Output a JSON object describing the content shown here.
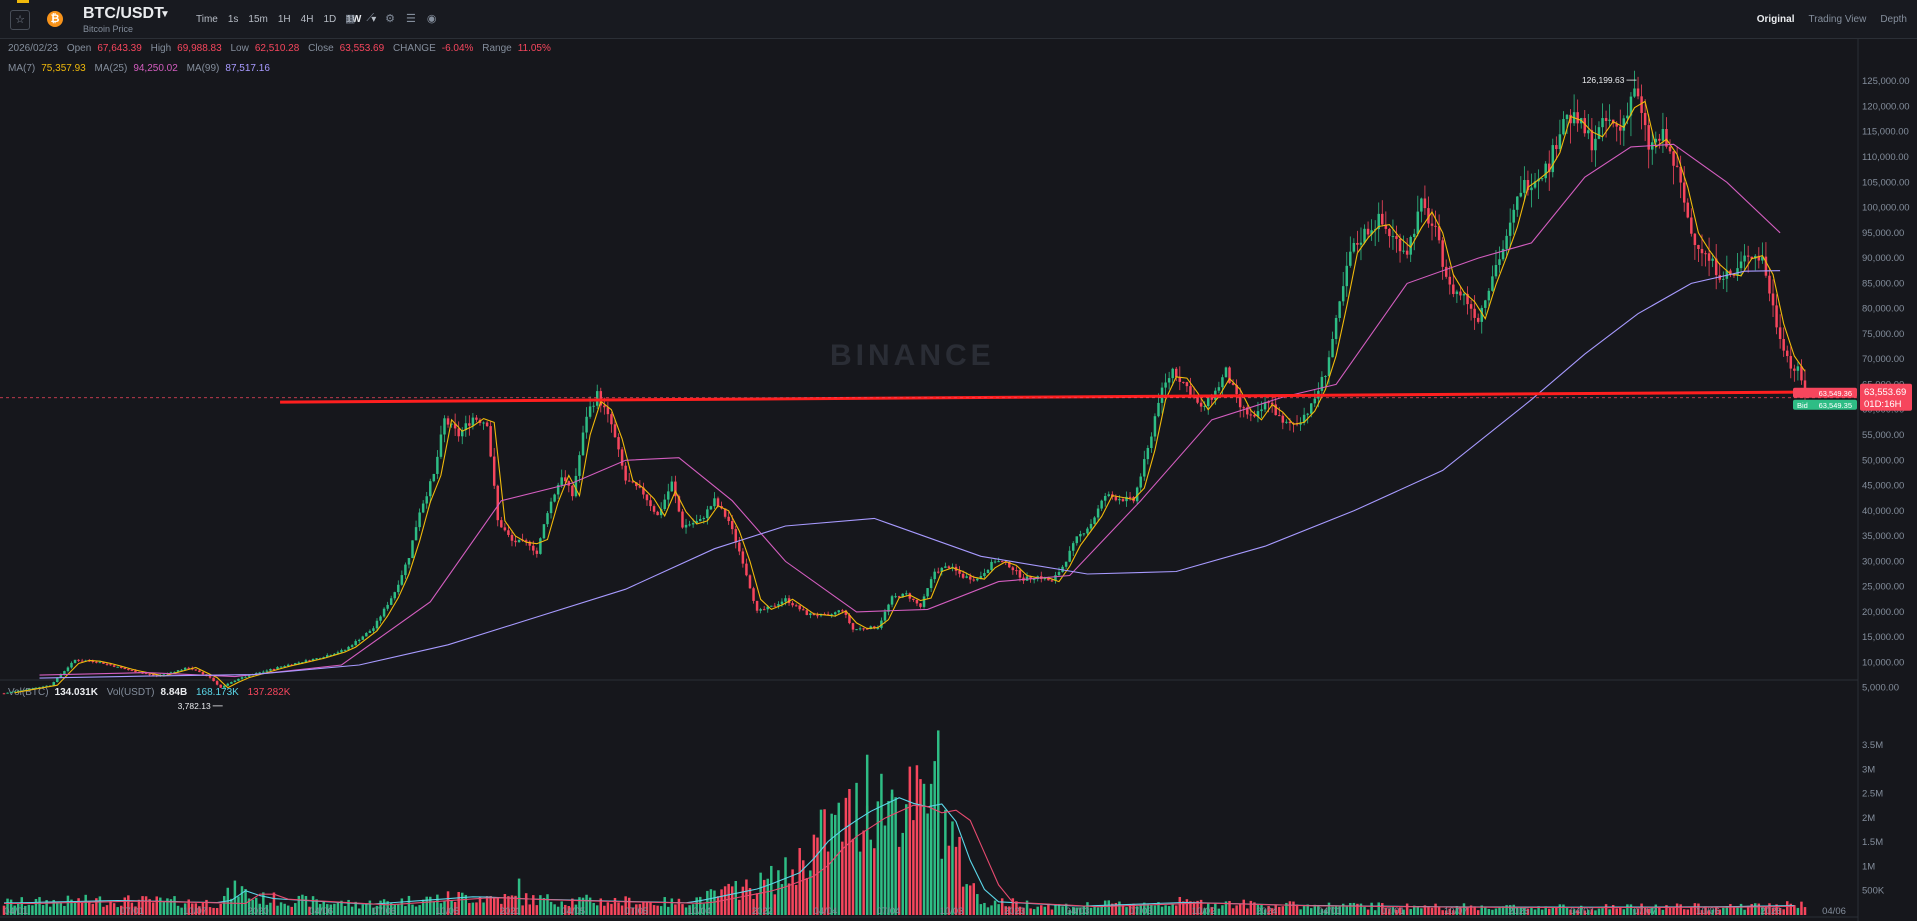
{
  "header": {
    "pair": "BTC/USDT",
    "subtitle": "Bitcoin Price",
    "intervals": [
      "Time",
      "1s",
      "15m",
      "1H",
      "4H",
      "1D",
      "1W"
    ],
    "active_interval": "1W",
    "views": [
      "Original",
      "Trading View",
      "Depth"
    ],
    "active_view": "Original"
  },
  "ohlc": {
    "date": "2026/02/23",
    "open_label": "Open",
    "open": "67,643.39",
    "high_label": "High",
    "high": "69,988.83",
    "low_label": "Low",
    "low": "62,510.28",
    "close_label": "Close",
    "close": "63,553.69",
    "change_label": "CHANGE",
    "change": "-6.04%",
    "range_label": "Range",
    "range": "11.05%"
  },
  "ma": {
    "ma7_label": "MA(7)",
    "ma7": "75,357.93",
    "ma25_label": "MA(25)",
    "ma25": "94,250.02",
    "ma99_label": "MA(99)",
    "ma99": "87,517.16"
  },
  "volume_info": {
    "btc_label": "Vol(BTC)",
    "btc": "134.031K",
    "usdt_label": "Vol(USDT)",
    "usdt": "8.84B",
    "ma1": "168.173K",
    "ma2": "137.282K"
  },
  "price_tags": {
    "last_price": "63,553.69",
    "countdown": "01D:16H",
    "ask": "63,549.36",
    "bid_label": "Bid",
    "bid": "63,549.35"
  },
  "annotations": {
    "high": "126,199.63",
    "low": "3,782.13"
  },
  "watermark": "BINANCE",
  "colors": {
    "up": "#2ebd85",
    "down": "#f6465d",
    "ma7": "#f0b90b",
    "ma25": "#d35dbf",
    "ma99": "#a79aff",
    "trendline": "#ff1f1f"
  },
  "chart_data": {
    "type": "candlestick",
    "timeframe": "1W",
    "price_axis": {
      "ticks": [
        5000,
        10000,
        15000,
        20000,
        25000,
        30000,
        35000,
        40000,
        45000,
        50000,
        55000,
        60000,
        65000,
        70000,
        75000,
        80000,
        85000,
        90000,
        95000,
        100000,
        105000,
        110000,
        115000,
        120000,
        125000
      ],
      "tick_labels": [
        "5,000.00",
        "10,000.00",
        "15,000.00",
        "20,000.00",
        "25,000.00",
        "30,000.00",
        "35,000.00",
        "40,000.00",
        "45,000.00",
        "50,000.00",
        "55,000.00",
        "60,000.00",
        "65,000.00",
        "70,000.00",
        "75,000.00",
        "80,000.00",
        "85,000.00",
        "90,000.00",
        "95,000.00",
        "100,000.00",
        "105,000.00",
        "110,000.00",
        "115,000.00",
        "120,000.00",
        "125,000.00"
      ],
      "range": [
        0,
        128000
      ]
    },
    "volume_axis": {
      "ticks": [
        500000,
        1000000,
        1500000,
        2000000,
        2500000,
        3000000,
        3500000
      ],
      "tick_labels": [
        "500K",
        "1M",
        "1.5M",
        "2M",
        "2.5M",
        "3M",
        "3.5M"
      ],
      "range": [
        0,
        4200000
      ]
    },
    "time_axis": [
      "04/01",
      "07/01",
      "10/07",
      "2020",
      "04/06",
      "07/06",
      "10/05",
      "2021",
      "04/05",
      "07/05",
      "10/04",
      "2022",
      "04/04",
      "07/04",
      "10/03",
      "2023",
      "04/03",
      "07/03",
      "10/02",
      "2024",
      "04/01",
      "07/01",
      "10/07",
      "2025",
      "04/07",
      "07/07",
      "10/06",
      "2026",
      "04/06"
    ],
    "price_path": [
      [
        0,
        3900
      ],
      [
        13,
        5500
      ],
      [
        20,
        10500
      ],
      [
        26,
        10200
      ],
      [
        35,
        8500
      ],
      [
        43,
        7300
      ],
      [
        52,
        9000
      ],
      [
        58,
        7000
      ],
      [
        61,
        5000
      ],
      [
        66,
        6800
      ],
      [
        78,
        9200
      ],
      [
        88,
        10800
      ],
      [
        96,
        12500
      ],
      [
        104,
        16800
      ],
      [
        110,
        24000
      ],
      [
        114,
        31000
      ],
      [
        117,
        40000
      ],
      [
        121,
        47000
      ],
      [
        124,
        58000
      ],
      [
        128,
        55000
      ],
      [
        132,
        58500
      ],
      [
        136,
        57500
      ],
      [
        139,
        38000
      ],
      [
        143,
        34000
      ],
      [
        148,
        33500
      ],
      [
        150,
        31500
      ],
      [
        153,
        40000
      ],
      [
        157,
        47000
      ],
      [
        160,
        43000
      ],
      [
        164,
        59000
      ],
      [
        167,
        63000
      ],
      [
        171,
        57000
      ],
      [
        175,
        46000
      ],
      [
        180,
        43500
      ],
      [
        184,
        39000
      ],
      [
        188,
        45500
      ],
      [
        191,
        37000
      ],
      [
        196,
        38000
      ],
      [
        200,
        42000
      ],
      [
        204,
        38000
      ],
      [
        208,
        30000
      ],
      [
        212,
        20000
      ],
      [
        216,
        21000
      ],
      [
        220,
        22500
      ],
      [
        226,
        19600
      ],
      [
        232,
        19200
      ],
      [
        236,
        20500
      ],
      [
        239,
        16500
      ],
      [
        242,
        16800
      ],
      [
        246,
        17000
      ],
      [
        250,
        22800
      ],
      [
        254,
        23500
      ],
      [
        258,
        21000
      ],
      [
        262,
        28000
      ],
      [
        266,
        29000
      ],
      [
        270,
        27000
      ],
      [
        274,
        26500
      ],
      [
        279,
        30200
      ],
      [
        283,
        29200
      ],
      [
        287,
        26500
      ],
      [
        291,
        27000
      ],
      [
        295,
        26000
      ],
      [
        298,
        29000
      ],
      [
        302,
        34500
      ],
      [
        306,
        37500
      ],
      [
        310,
        43000
      ],
      [
        314,
        42500
      ],
      [
        318,
        42000
      ],
      [
        322,
        52000
      ],
      [
        325,
        62000
      ],
      [
        329,
        68000
      ],
      [
        333,
        64500
      ],
      [
        337,
        60000
      ],
      [
        341,
        63500
      ],
      [
        344,
        67500
      ],
      [
        348,
        60500
      ],
      [
        352,
        58000
      ],
      [
        356,
        62000
      ],
      [
        360,
        57000
      ],
      [
        364,
        57500
      ],
      [
        368,
        60500
      ],
      [
        372,
        67500
      ],
      [
        375,
        77000
      ],
      [
        379,
        91000
      ],
      [
        383,
        95000
      ],
      [
        387,
        97500
      ],
      [
        391,
        94000
      ],
      [
        395,
        91500
      ],
      [
        399,
        100500
      ],
      [
        403,
        95000
      ],
      [
        407,
        84000
      ],
      [
        411,
        82500
      ],
      [
        415,
        78000
      ],
      [
        419,
        87000
      ],
      [
        423,
        93500
      ],
      [
        427,
        104000
      ],
      [
        431,
        106000
      ],
      [
        435,
        108500
      ],
      [
        439,
        118000
      ],
      [
        443,
        117000
      ],
      [
        447,
        113000
      ],
      [
        451,
        117000
      ],
      [
        455,
        115500
      ],
      [
        459,
        124000
      ],
      [
        463,
        112000
      ],
      [
        467,
        114000
      ],
      [
        471,
        107000
      ],
      [
        475,
        95000
      ],
      [
        479,
        90500
      ],
      [
        483,
        87000
      ],
      [
        487,
        86500
      ],
      [
        491,
        91000
      ],
      [
        495,
        90000
      ],
      [
        499,
        77000
      ],
      [
        503,
        68500
      ],
      [
        505,
        67600
      ],
      [
        507,
        63550
      ]
    ],
    "ma99_path": [
      [
        10,
        6900
      ],
      [
        40,
        7300
      ],
      [
        70,
        7600
      ],
      [
        100,
        9500
      ],
      [
        125,
        13500
      ],
      [
        150,
        19000
      ],
      [
        175,
        24500
      ],
      [
        200,
        32500
      ],
      [
        220,
        37000
      ],
      [
        245,
        38500
      ],
      [
        275,
        31000
      ],
      [
        305,
        27500
      ],
      [
        330,
        28000
      ],
      [
        355,
        33000
      ],
      [
        380,
        40000
      ],
      [
        405,
        48000
      ],
      [
        430,
        62000
      ],
      [
        445,
        71000
      ],
      [
        460,
        79000
      ],
      [
        475,
        85000
      ],
      [
        490,
        87400
      ],
      [
        500,
        87500
      ]
    ],
    "ma25_path": [
      [
        10,
        7500
      ],
      [
        40,
        8000
      ],
      [
        65,
        7200
      ],
      [
        95,
        9500
      ],
      [
        120,
        22000
      ],
      [
        140,
        42000
      ],
      [
        160,
        45500
      ],
      [
        175,
        50000
      ],
      [
        190,
        50500
      ],
      [
        205,
        42000
      ],
      [
        220,
        30000
      ],
      [
        240,
        20000
      ],
      [
        260,
        20500
      ],
      [
        280,
        26000
      ],
      [
        300,
        27200
      ],
      [
        320,
        42000
      ],
      [
        340,
        58000
      ],
      [
        360,
        62500
      ],
      [
        375,
        65000
      ],
      [
        395,
        85000
      ],
      [
        415,
        90000
      ],
      [
        430,
        93000
      ],
      [
        445,
        106000
      ],
      [
        458,
        112000
      ],
      [
        470,
        112500
      ],
      [
        485,
        105000
      ],
      [
        500,
        95000
      ]
    ],
    "volume_path": [
      [
        0,
        250000
      ],
      [
        30,
        300000
      ],
      [
        60,
        250000
      ],
      [
        66,
        550000
      ],
      [
        70,
        350000
      ],
      [
        100,
        220000
      ],
      [
        130,
        380000
      ],
      [
        145,
        330000
      ],
      [
        160,
        300000
      ],
      [
        190,
        250000
      ],
      [
        210,
        550000
      ],
      [
        222,
        900000
      ],
      [
        230,
        1600000
      ],
      [
        240,
        2100000
      ],
      [
        250,
        2450000
      ],
      [
        255,
        2200000
      ],
      [
        262,
        2300000
      ],
      [
        266,
        1800000
      ],
      [
        270,
        900000
      ],
      [
        275,
        280000
      ],
      [
        300,
        180000
      ],
      [
        330,
        260000
      ],
      [
        360,
        200000
      ],
      [
        400,
        170000
      ],
      [
        440,
        160000
      ],
      [
        480,
        170000
      ],
      [
        505,
        200000
      ]
    ],
    "volume_spikes": [
      [
        243,
        3300000
      ],
      [
        250,
        2500000
      ],
      [
        263,
        3800000
      ],
      [
        261,
        2700000
      ],
      [
        206,
        700000
      ],
      [
        145,
        750000
      ]
    ],
    "trendline": {
      "from": [
        78,
        61500
      ],
      "to": [
        507,
        63500
      ]
    },
    "last_price": 63553.69,
    "annotations": [
      {
        "label": "126,199.63",
        "x": 459,
        "y": 126199.63
      },
      {
        "label": "3,782.13",
        "x": 61,
        "y": 3782.13
      }
    ]
  }
}
